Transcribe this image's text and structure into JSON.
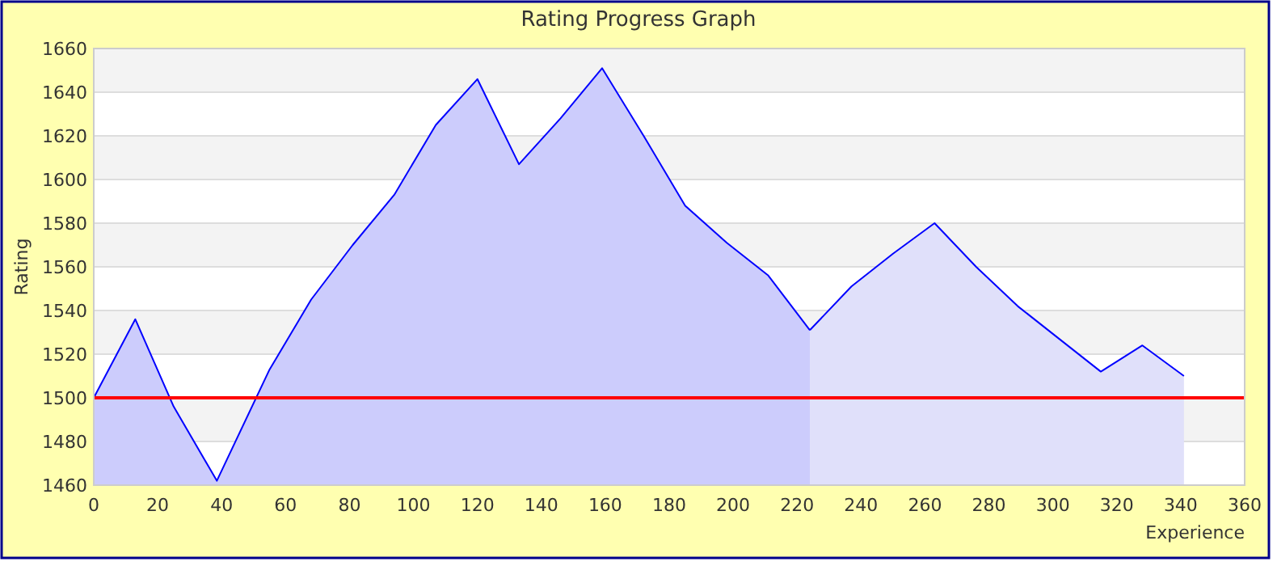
{
  "chart_data": {
    "type": "area",
    "title": "Rating Progress Graph",
    "xlabel": "Experience",
    "ylabel": "Rating",
    "xlim": [
      0,
      360
    ],
    "xticks": [
      0,
      20,
      40,
      60,
      80,
      100,
      120,
      140,
      160,
      180,
      200,
      220,
      240,
      260,
      280,
      300,
      320,
      340,
      360
    ],
    "ylim": [
      1460,
      1660
    ],
    "yticks": [
      1460,
      1480,
      1500,
      1520,
      1540,
      1560,
      1580,
      1600,
      1620,
      1640,
      1660
    ],
    "grid": "y",
    "series": [
      {
        "color": "#ccccfc",
        "x": [
          0,
          13,
          25,
          38.5,
          55,
          68,
          81,
          94,
          107,
          120,
          133,
          146,
          159,
          172,
          185,
          198,
          211,
          224
        ],
        "values": [
          1500,
          1536,
          1496,
          1462,
          1513,
          1545,
          1570,
          1593,
          1625,
          1646,
          1607,
          1628,
          1651,
          1620,
          1588,
          1571,
          1556,
          1531
        ]
      },
      {
        "color": "#e0e0fa",
        "x": [
          224,
          237,
          250,
          263,
          276,
          289,
          302,
          315,
          328,
          341
        ],
        "values": [
          1531,
          1551,
          1566,
          1580,
          1560,
          1542,
          1527,
          1512,
          1524,
          1510
        ]
      }
    ],
    "ref_lines": [
      {
        "axis": "y",
        "value": 1500,
        "color": "#ff0000"
      }
    ]
  }
}
